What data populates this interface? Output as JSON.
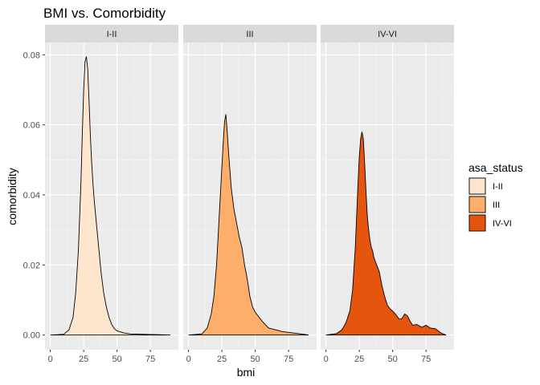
{
  "chart_data": {
    "type": "area",
    "subtype": "faceted density",
    "title": "BMI vs. Comorbidity",
    "xlabel": "bmi",
    "ylabel": "comorbidity",
    "xlim": [
      -4,
      96
    ],
    "ylim": [
      -0.0042,
      0.0835
    ],
    "x_ticks": [
      0,
      25,
      50,
      75
    ],
    "y_ticks": [
      0.0,
      0.02,
      0.04,
      0.06,
      0.08
    ],
    "y_tick_labels": [
      "0.00",
      "0.02",
      "0.04",
      "0.06",
      "0.08"
    ],
    "grid": true,
    "legend": {
      "title": "asa_status",
      "position": "right"
    },
    "facets": [
      {
        "label": "I-II",
        "fill": "#FEE6CE",
        "x": [
          0,
          10,
          14,
          17,
          19,
          21,
          23,
          24,
          25,
          26,
          27,
          28,
          29,
          30,
          31,
          32,
          33,
          34,
          35,
          36,
          37,
          38,
          40,
          42,
          44,
          46,
          48,
          50,
          55,
          60,
          70,
          80,
          90
        ],
        "y": [
          0,
          0.0002,
          0.0015,
          0.005,
          0.012,
          0.024,
          0.044,
          0.058,
          0.07,
          0.078,
          0.0795,
          0.076,
          0.067,
          0.057,
          0.049,
          0.043,
          0.038,
          0.034,
          0.03,
          0.026,
          0.022,
          0.018,
          0.012,
          0.008,
          0.005,
          0.003,
          0.0018,
          0.0012,
          0.0006,
          0.0003,
          0.0002,
          0.0001,
          0
        ]
      },
      {
        "label": "III",
        "fill": "#FDAE6B",
        "x": [
          0,
          10,
          14,
          17,
          19,
          21,
          23,
          25,
          26,
          27,
          28,
          29,
          30,
          31,
          32,
          33,
          34,
          35,
          36,
          38,
          40,
          42,
          44,
          46,
          48,
          50,
          55,
          60,
          65,
          70,
          80,
          90
        ],
        "y": [
          0,
          0.0003,
          0.002,
          0.006,
          0.011,
          0.02,
          0.034,
          0.048,
          0.055,
          0.061,
          0.063,
          0.058,
          0.052,
          0.047,
          0.042,
          0.039,
          0.036,
          0.034,
          0.032,
          0.028,
          0.025,
          0.02,
          0.016,
          0.011,
          0.008,
          0.0065,
          0.004,
          0.002,
          0.0015,
          0.001,
          0.0005,
          0
        ]
      },
      {
        "label": "IV-VI",
        "fill": "#E6550D",
        "x": [
          0,
          8,
          12,
          15,
          18,
          20,
          22,
          24,
          25,
          26,
          27,
          28,
          29,
          30,
          31,
          32,
          33,
          34,
          35,
          36,
          38,
          40,
          42,
          44,
          46,
          48,
          50,
          52,
          55,
          57,
          59,
          61,
          63,
          65,
          68,
          72,
          75,
          78,
          82,
          86,
          90
        ],
        "y": [
          0,
          0.0004,
          0.0015,
          0.0035,
          0.007,
          0.013,
          0.025,
          0.043,
          0.051,
          0.056,
          0.058,
          0.056,
          0.049,
          0.041,
          0.034,
          0.03,
          0.027,
          0.025,
          0.024,
          0.022,
          0.02,
          0.018,
          0.014,
          0.011,
          0.0085,
          0.0075,
          0.0068,
          0.006,
          0.0045,
          0.0047,
          0.006,
          0.0055,
          0.004,
          0.0028,
          0.003,
          0.0022,
          0.0028,
          0.002,
          0.0018,
          0.0006,
          0
        ]
      }
    ]
  }
}
